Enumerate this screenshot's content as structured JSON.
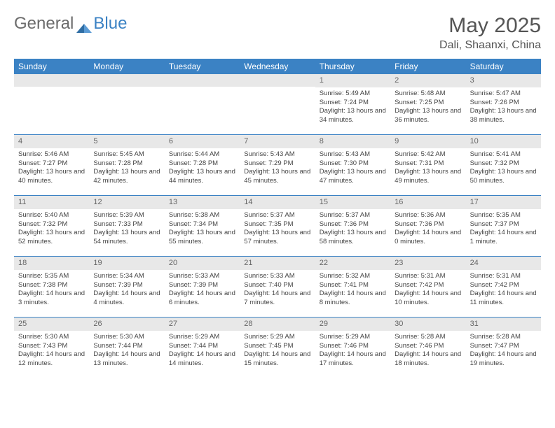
{
  "brand": {
    "part1": "General",
    "part2": "Blue"
  },
  "title": "May 2025",
  "location": "Dali, Shaanxi, China",
  "colors": {
    "header_bg": "#3b82c4",
    "header_text": "#ffffff",
    "date_bg": "#e8e8e8",
    "week_border": "#3b82c4",
    "text": "#444444",
    "title_color": "#555555"
  },
  "day_names": [
    "Sunday",
    "Monday",
    "Tuesday",
    "Wednesday",
    "Thursday",
    "Friday",
    "Saturday"
  ],
  "weeks": [
    [
      {
        "date": "",
        "sunrise": "",
        "sunset": "",
        "daylight": ""
      },
      {
        "date": "",
        "sunrise": "",
        "sunset": "",
        "daylight": ""
      },
      {
        "date": "",
        "sunrise": "",
        "sunset": "",
        "daylight": ""
      },
      {
        "date": "",
        "sunrise": "",
        "sunset": "",
        "daylight": ""
      },
      {
        "date": "1",
        "sunrise": "Sunrise: 5:49 AM",
        "sunset": "Sunset: 7:24 PM",
        "daylight": "Daylight: 13 hours and 34 minutes."
      },
      {
        "date": "2",
        "sunrise": "Sunrise: 5:48 AM",
        "sunset": "Sunset: 7:25 PM",
        "daylight": "Daylight: 13 hours and 36 minutes."
      },
      {
        "date": "3",
        "sunrise": "Sunrise: 5:47 AM",
        "sunset": "Sunset: 7:26 PM",
        "daylight": "Daylight: 13 hours and 38 minutes."
      }
    ],
    [
      {
        "date": "4",
        "sunrise": "Sunrise: 5:46 AM",
        "sunset": "Sunset: 7:27 PM",
        "daylight": "Daylight: 13 hours and 40 minutes."
      },
      {
        "date": "5",
        "sunrise": "Sunrise: 5:45 AM",
        "sunset": "Sunset: 7:28 PM",
        "daylight": "Daylight: 13 hours and 42 minutes."
      },
      {
        "date": "6",
        "sunrise": "Sunrise: 5:44 AM",
        "sunset": "Sunset: 7:28 PM",
        "daylight": "Daylight: 13 hours and 44 minutes."
      },
      {
        "date": "7",
        "sunrise": "Sunrise: 5:43 AM",
        "sunset": "Sunset: 7:29 PM",
        "daylight": "Daylight: 13 hours and 45 minutes."
      },
      {
        "date": "8",
        "sunrise": "Sunrise: 5:43 AM",
        "sunset": "Sunset: 7:30 PM",
        "daylight": "Daylight: 13 hours and 47 minutes."
      },
      {
        "date": "9",
        "sunrise": "Sunrise: 5:42 AM",
        "sunset": "Sunset: 7:31 PM",
        "daylight": "Daylight: 13 hours and 49 minutes."
      },
      {
        "date": "10",
        "sunrise": "Sunrise: 5:41 AM",
        "sunset": "Sunset: 7:32 PM",
        "daylight": "Daylight: 13 hours and 50 minutes."
      }
    ],
    [
      {
        "date": "11",
        "sunrise": "Sunrise: 5:40 AM",
        "sunset": "Sunset: 7:32 PM",
        "daylight": "Daylight: 13 hours and 52 minutes."
      },
      {
        "date": "12",
        "sunrise": "Sunrise: 5:39 AM",
        "sunset": "Sunset: 7:33 PM",
        "daylight": "Daylight: 13 hours and 54 minutes."
      },
      {
        "date": "13",
        "sunrise": "Sunrise: 5:38 AM",
        "sunset": "Sunset: 7:34 PM",
        "daylight": "Daylight: 13 hours and 55 minutes."
      },
      {
        "date": "14",
        "sunrise": "Sunrise: 5:37 AM",
        "sunset": "Sunset: 7:35 PM",
        "daylight": "Daylight: 13 hours and 57 minutes."
      },
      {
        "date": "15",
        "sunrise": "Sunrise: 5:37 AM",
        "sunset": "Sunset: 7:36 PM",
        "daylight": "Daylight: 13 hours and 58 minutes."
      },
      {
        "date": "16",
        "sunrise": "Sunrise: 5:36 AM",
        "sunset": "Sunset: 7:36 PM",
        "daylight": "Daylight: 14 hours and 0 minutes."
      },
      {
        "date": "17",
        "sunrise": "Sunrise: 5:35 AM",
        "sunset": "Sunset: 7:37 PM",
        "daylight": "Daylight: 14 hours and 1 minute."
      }
    ],
    [
      {
        "date": "18",
        "sunrise": "Sunrise: 5:35 AM",
        "sunset": "Sunset: 7:38 PM",
        "daylight": "Daylight: 14 hours and 3 minutes."
      },
      {
        "date": "19",
        "sunrise": "Sunrise: 5:34 AM",
        "sunset": "Sunset: 7:39 PM",
        "daylight": "Daylight: 14 hours and 4 minutes."
      },
      {
        "date": "20",
        "sunrise": "Sunrise: 5:33 AM",
        "sunset": "Sunset: 7:39 PM",
        "daylight": "Daylight: 14 hours and 6 minutes."
      },
      {
        "date": "21",
        "sunrise": "Sunrise: 5:33 AM",
        "sunset": "Sunset: 7:40 PM",
        "daylight": "Daylight: 14 hours and 7 minutes."
      },
      {
        "date": "22",
        "sunrise": "Sunrise: 5:32 AM",
        "sunset": "Sunset: 7:41 PM",
        "daylight": "Daylight: 14 hours and 8 minutes."
      },
      {
        "date": "23",
        "sunrise": "Sunrise: 5:31 AM",
        "sunset": "Sunset: 7:42 PM",
        "daylight": "Daylight: 14 hours and 10 minutes."
      },
      {
        "date": "24",
        "sunrise": "Sunrise: 5:31 AM",
        "sunset": "Sunset: 7:42 PM",
        "daylight": "Daylight: 14 hours and 11 minutes."
      }
    ],
    [
      {
        "date": "25",
        "sunrise": "Sunrise: 5:30 AM",
        "sunset": "Sunset: 7:43 PM",
        "daylight": "Daylight: 14 hours and 12 minutes."
      },
      {
        "date": "26",
        "sunrise": "Sunrise: 5:30 AM",
        "sunset": "Sunset: 7:44 PM",
        "daylight": "Daylight: 14 hours and 13 minutes."
      },
      {
        "date": "27",
        "sunrise": "Sunrise: 5:29 AM",
        "sunset": "Sunset: 7:44 PM",
        "daylight": "Daylight: 14 hours and 14 minutes."
      },
      {
        "date": "28",
        "sunrise": "Sunrise: 5:29 AM",
        "sunset": "Sunset: 7:45 PM",
        "daylight": "Daylight: 14 hours and 15 minutes."
      },
      {
        "date": "29",
        "sunrise": "Sunrise: 5:29 AM",
        "sunset": "Sunset: 7:46 PM",
        "daylight": "Daylight: 14 hours and 17 minutes."
      },
      {
        "date": "30",
        "sunrise": "Sunrise: 5:28 AM",
        "sunset": "Sunset: 7:46 PM",
        "daylight": "Daylight: 14 hours and 18 minutes."
      },
      {
        "date": "31",
        "sunrise": "Sunrise: 5:28 AM",
        "sunset": "Sunset: 7:47 PM",
        "daylight": "Daylight: 14 hours and 19 minutes."
      }
    ]
  ]
}
